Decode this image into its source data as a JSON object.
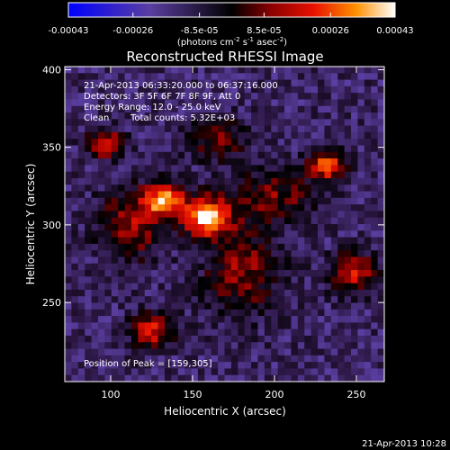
{
  "chart_data": {
    "type": "heatmap",
    "title": "Reconstructed RHESSI Image",
    "xlabel": "Heliocentric X (arcsec)",
    "ylabel": "Heliocentric Y (arcsec)",
    "xlim": [
      72,
      267
    ],
    "ylim": [
      199,
      402
    ],
    "xticks": [
      100,
      150,
      200,
      250
    ],
    "yticks": [
      250,
      300,
      350,
      400
    ],
    "colorbar": {
      "range": [
        -0.00043,
        0.00043
      ],
      "tick_values": [
        -0.00043,
        -0.00026,
        -8.5e-05,
        8.5e-05,
        0.00026,
        0.00043
      ],
      "tick_labels": [
        "-0.00043",
        "-0.00026",
        "-8.5e-05",
        "8.5e-05",
        "0.00026",
        "0.00043"
      ],
      "unit_label_main": "(photons cm",
      "unit_label_exp1": "-2",
      "unit_label_mid": " s",
      "unit_label_exp2": "-1",
      "unit_label_end": " asec",
      "unit_label_exp3": "-2",
      "unit_label_close": ")"
    },
    "annotations": {
      "time_range": "21-Apr-2013 06:33:20.000 to 06:37:16.000",
      "detectors": "Detectors: 3F 5F 6F 7F 8F 9F, Att 0",
      "energy": "Energy Range: 12.0 - 25.0 keV",
      "method": "Clean",
      "counts": "Total counts: 5.32E+03",
      "peak": "Position of Peak = [159,305]"
    },
    "peak": {
      "x": 159,
      "y": 305
    },
    "sources": [
      {
        "x": 159,
        "y": 305,
        "sx": 10,
        "sy": 9,
        "amp": 1.0
      },
      {
        "x": 133,
        "y": 316,
        "sx": 9,
        "sy": 8,
        "amp": 0.82
      },
      {
        "x": 112,
        "y": 300,
        "sx": 14,
        "sy": 16,
        "amp": 0.48
      },
      {
        "x": 97,
        "y": 352,
        "sx": 8,
        "sy": 6,
        "amp": 0.68
      },
      {
        "x": 232,
        "y": 338,
        "sx": 8,
        "sy": 7,
        "amp": 0.72
      },
      {
        "x": 248,
        "y": 269,
        "sx": 10,
        "sy": 9,
        "amp": 0.58
      },
      {
        "x": 125,
        "y": 232,
        "sx": 9,
        "sy": 8,
        "amp": 0.62
      },
      {
        "x": 180,
        "y": 270,
        "sx": 16,
        "sy": 20,
        "amp": 0.45
      },
      {
        "x": 200,
        "y": 318,
        "sx": 18,
        "sy": 12,
        "amp": 0.4
      },
      {
        "x": 165,
        "y": 355,
        "sx": 12,
        "sy": 10,
        "amp": 0.38
      }
    ],
    "footer_date": "21-Apr-2013 10:28"
  }
}
